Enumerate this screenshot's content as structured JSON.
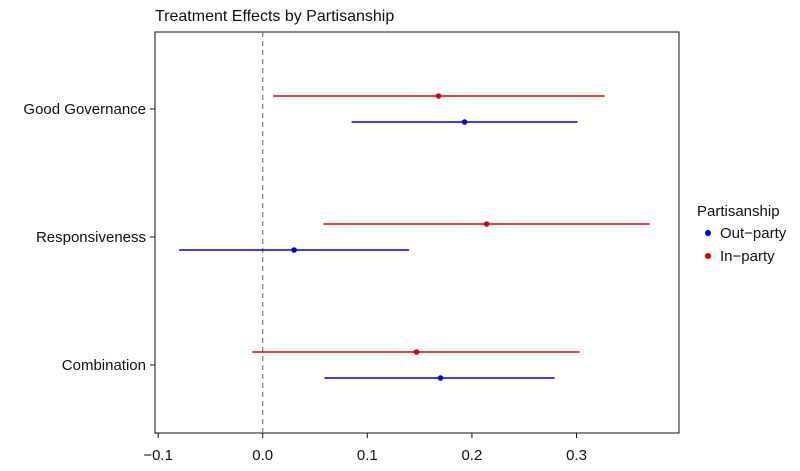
{
  "chart_data": {
    "type": "scatter",
    "title": "Treatment Effects by Partisanship",
    "xlabel": "",
    "ylabel": "",
    "xlim": [
      -0.103,
      0.398
    ],
    "x_ticks": [
      -0.1,
      0.0,
      0.1,
      0.2,
      0.3
    ],
    "x_tick_labels": [
      "−0.1",
      "0.0",
      "0.1",
      "0.2",
      "0.3"
    ],
    "categories": [
      "Good Governance",
      "Responsiveness",
      "Combination"
    ],
    "reference_line": 0,
    "grid": false,
    "legend": {
      "title": "Partisanship",
      "position": "right"
    },
    "series": [
      {
        "name": "Out−party",
        "color": "#0000dd",
        "estimates": [
          0.193,
          0.03,
          0.17
        ],
        "ci_low": [
          0.085,
          -0.08,
          0.059
        ],
        "ci_high": [
          0.301,
          0.14,
          0.279
        ]
      },
      {
        "name": "In−party",
        "color": "#dd0000",
        "estimates": [
          0.168,
          0.214,
          0.147
        ],
        "ci_low": [
          0.01,
          0.058,
          -0.01
        ],
        "ci_high": [
          0.327,
          0.37,
          0.303
        ]
      }
    ]
  }
}
